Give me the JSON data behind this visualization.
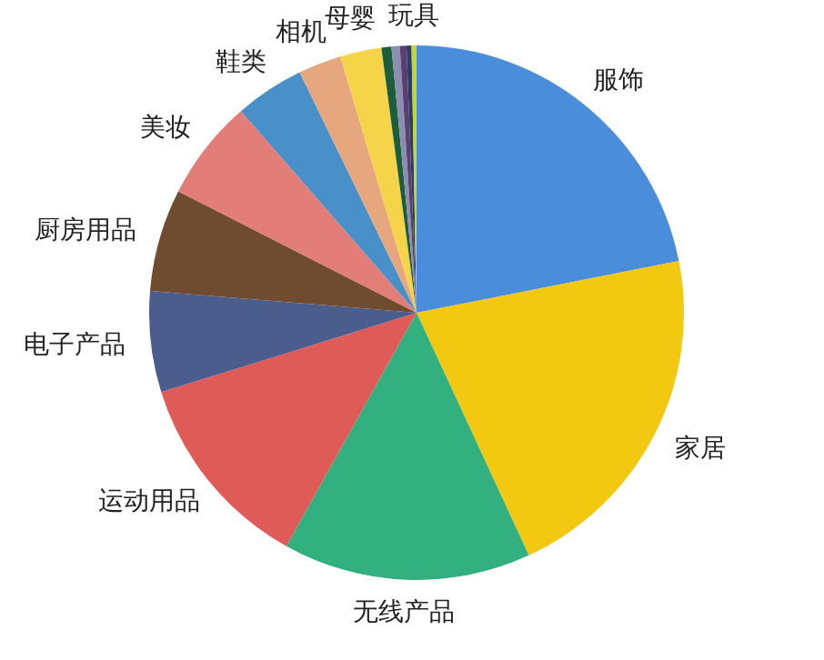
{
  "chart_data": {
    "type": "pie",
    "categories": [
      "服饰",
      "家居",
      "无线产品",
      "运动用品",
      "电子产品",
      "厨房用品",
      "美妆",
      "鞋类",
      "相机",
      "母婴",
      null,
      null,
      null,
      null,
      "玩具"
    ],
    "values": [
      21.9,
      21.2,
      15.0,
      12.1,
      6.1,
      6.2,
      6.1,
      4.2,
      2.6,
      2.5,
      0.6,
      0.5,
      0.4,
      0.3,
      0.3
    ],
    "colors": [
      "#4a8edb",
      "#f2c811",
      "#33b07f",
      "#de5b58",
      "#4a5d8c",
      "#6f4c30",
      "#e27d78",
      "#4a90c8",
      "#e6a67e",
      "#f5d44a",
      "#1c5e3c",
      "#8a8eb0",
      "#5c3f6e",
      "#2b3e6b",
      "#c3d82a"
    ]
  }
}
